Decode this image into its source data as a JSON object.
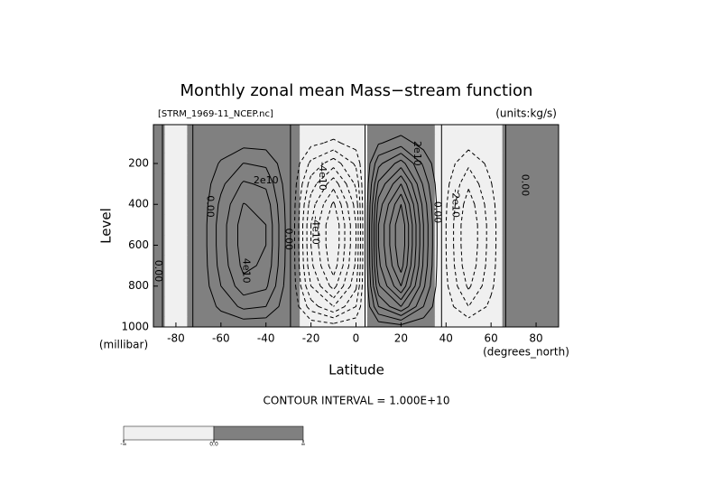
{
  "chart_data": {
    "type": "contour",
    "title": "Monthly zonal mean Mass−stream function",
    "subtitle_left": "[STRM_1969-11_NCEP.nc]",
    "subtitle_right": "(units:kg/s)",
    "x_label": "Latitude",
    "x_unit": "(degrees_north)",
    "y_label": "Level",
    "y_unit": "(millibar)",
    "footer": "CONTOUR INTERVAL = 1.000E+10",
    "xlim": [
      -90,
      90
    ],
    "xticks": [
      -80,
      -60,
      -40,
      -20,
      0,
      20,
      40,
      60,
      80
    ],
    "ylim": [
      1000,
      10
    ],
    "yticks": [
      200,
      400,
      600,
      800,
      1000
    ],
    "x": [
      -90,
      -80,
      -70,
      -60,
      -50,
      -40,
      -30,
      -20,
      -10,
      0,
      10,
      20,
      30,
      40,
      50,
      60,
      70,
      80,
      90
    ],
    "levels": [
      10,
      100,
      200,
      300,
      400,
      500,
      600,
      700,
      800,
      900,
      1000
    ],
    "z": [
      [
        60000000.0,
        -90000000.0,
        30000000.0,
        750000000.0,
        1350000000.0,
        1200000000.0,
        150000000.0,
        -1500000000.0,
        -2400000000.0,
        -1200000000.0,
        1800000000.0,
        3000000000.0,
        1200000000.0,
        -300000000.0,
        -1200000000.0,
        -450000000.0,
        240000000.0,
        180000000.0,
        60000000.0
      ],
      [
        300000000.0,
        -450000000.0,
        150000000.0,
        3750000000.0,
        6750000000.0,
        6000000000.0,
        750000000.0,
        -7500000000.0,
        -12000000000.0,
        -6000000000.0,
        9000000000.0,
        15000000000.0,
        6000000000.0,
        -1500000000.0,
        -6000000000.0,
        -2250000000.0,
        1200000000.0,
        900000000.0,
        300000000.0
      ],
      [
        900000000.0,
        -1350000000.0,
        450000000.0,
        11250000000.0,
        20250000000.0,
        18000000000.0,
        2250000000.0,
        -22500000000.0,
        -36000000000.0,
        -18000000000.0,
        27000000000.0,
        45000000000.0,
        18000000000.0,
        -4500000000.0,
        -18000000000.0,
        -6750000000.0,
        3600000000.0,
        2700000000.0,
        900000000.0
      ],
      [
        1400000000.0,
        -2100000000.0,
        700000000.0,
        17500000000.0,
        31500000000.0,
        28000000000.0,
        3500000000.0,
        -35000000000.0,
        -56000000000.0,
        -28000000000.0,
        42000000000.0,
        70000000000.0,
        28000000000.0,
        -7000000000.0,
        -28000000000.0,
        -10500000000.0,
        5600000000.0,
        4200000000.0,
        1400000000.0
      ],
      [
        1800000000.0,
        -2700000000.0,
        900000000.0,
        22500000000.0,
        40500000000.0,
        36000000000.0,
        4500000000.0,
        -45000000000.0,
        -72000000000.0,
        -36000000000.0,
        54000000000.0,
        90000000000.0,
        36000000000.0,
        -9000000000.0,
        -36000000000.0,
        -13500000000.0,
        7200000000.0,
        5400000000.0,
        1800000000.0
      ],
      [
        2000000000.0,
        -3000000000.0,
        1000000000.0,
        25000000000.0,
        45000000000.0,
        40000000000.0,
        5000000000.0,
        -50000000000.0,
        -80000000000.0,
        -40000000000.0,
        60000000000.0,
        100000000000.0,
        40000000000.0,
        -10000000000.0,
        -40000000000.0,
        -15000000000.0,
        8000000000.0,
        6000000000.0,
        2000000000.0
      ],
      [
        2000000000.0,
        -3000000000.0,
        1000000000.0,
        25000000000.0,
        45000000000.0,
        40000000000.0,
        5000000000.0,
        -50000000000.0,
        -80000000000.0,
        -40000000000.0,
        60000000000.0,
        100000000000.0,
        40000000000.0,
        -10000000000.0,
        -40000000000.0,
        -15000000000.0,
        8000000000.0,
        6000000000.0,
        2000000000.0
      ],
      [
        1900000000.0,
        -2850000000.0,
        950000000.0,
        23750000000.0,
        42750000000.0,
        38000000000.0,
        4750000000.0,
        -47500000000.0,
        -76000000000.0,
        -38000000000.0,
        57000000000.0,
        95000000000.0,
        38000000000.0,
        -9500000000.0,
        -38000000000.0,
        -14250000000.0,
        7600000000.0,
        5700000000.0,
        1900000000.0
      ],
      [
        1600000000.0,
        -2400000000.0,
        800000000.0,
        20000000000.0,
        36000000000.0,
        32000000000.0,
        4000000000.0,
        -40000000000.0,
        -64000000000.0,
        -32000000000.0,
        48000000000.0,
        80000000000.0,
        32000000000.0,
        -8000000000.0,
        -32000000000.0,
        -12000000000.0,
        6400000000.0,
        4800000000.0,
        1600000000.0
      ],
      [
        1000000000.0,
        -1500000000.0,
        500000000.0,
        12500000000.0,
        22500000000.0,
        20000000000.0,
        2500000000.0,
        -25000000000.0,
        -40000000000.0,
        -20000000000.0,
        30000000000.0,
        50000000000.0,
        20000000000.0,
        -5000000000.0,
        -20000000000.0,
        -7500000000.0,
        4000000000.0,
        3000000000.0,
        1000000000.0
      ],
      [
        100000000.0,
        -150000000.0,
        50000000.0,
        1250000000.0,
        2250000000.0,
        2000000000.0,
        250000000.0,
        -2500000000.0,
        -4000000000.0,
        -2000000000.0,
        3000000000.0,
        5000000000.0,
        2000000000.0,
        -500000000.0,
        -2000000000.0,
        -750000000.0,
        400000000.0,
        300000000.0,
        100000000.0
      ]
    ],
    "contour_levels": [
      -80000000000.0,
      -70000000000.0,
      -60000000000.0,
      -50000000000.0,
      -40000000000.0,
      -30000000000.0,
      -20000000000.0,
      -10000000000.0,
      0,
      10000000000.0,
      20000000000.0,
      30000000000.0,
      40000000000.0,
      50000000000.0,
      60000000000.0,
      70000000000.0,
      80000000000.0,
      90000000000.0
    ],
    "colors": {
      "negative": "#f0f0f0",
      "positive": "#808080"
    },
    "contour_labels": [
      {
        "text": "2e10",
        "lat": -40,
        "level": 285,
        "vertical": false
      },
      {
        "text": "4e10",
        "lat": -49,
        "level": 725,
        "vertical": true
      },
      {
        "text": "0.00",
        "lat": -65,
        "level": 410,
        "vertical": true
      },
      {
        "text": "0.00",
        "lat": -30,
        "level": 570,
        "vertical": true
      },
      {
        "text": "-4e10",
        "lat": -18,
        "level": 527,
        "vertical": true
      },
      {
        "text": "-4e10",
        "lat": -15,
        "level": 262,
        "vertical": true
      },
      {
        "text": "2e10",
        "lat": 27,
        "level": 151,
        "vertical": true
      },
      {
        "text": "0.00",
        "lat": 36,
        "level": 439,
        "vertical": true
      },
      {
        "text": "-2e10",
        "lat": 44,
        "level": 395,
        "vertical": true
      },
      {
        "text": "0.00",
        "lat": 75,
        "level": 306,
        "vertical": true
      },
      {
        "text": "0.00",
        "lat": -88,
        "level": 726,
        "vertical": true
      }
    ],
    "colorbar_labels": [
      "-∞",
      "0.0",
      "∞"
    ]
  }
}
